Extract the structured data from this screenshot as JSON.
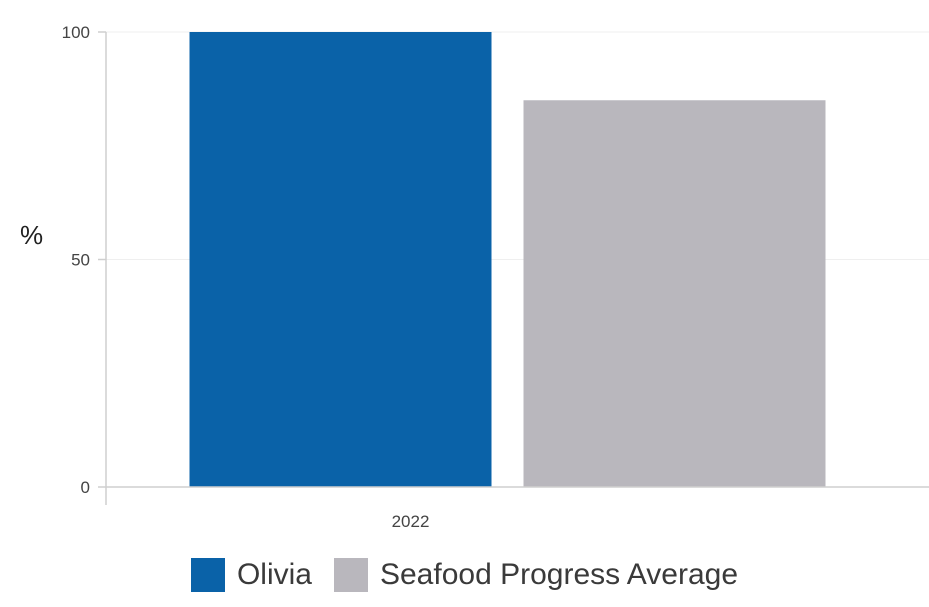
{
  "chart_data": {
    "type": "bar",
    "title": "",
    "xlabel": "",
    "ylabel": "%",
    "ylim": [
      0,
      100
    ],
    "yticks": [
      0,
      50,
      100
    ],
    "categories": [
      "2022"
    ],
    "series": [
      {
        "name": "Olivia",
        "values": [
          100
        ],
        "color": "#0a62a8"
      },
      {
        "name": "Seafood Progress Average",
        "values": [
          85
        ],
        "color": "#b9b7bd"
      }
    ],
    "grid": true,
    "legend_position": "bottom"
  }
}
